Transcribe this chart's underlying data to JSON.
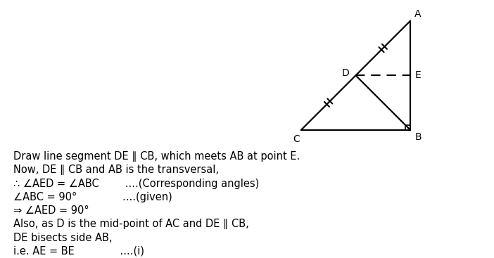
{
  "background_color": "#ffffff",
  "triangle_vertices": {
    "C": [
      0.0,
      0.0
    ],
    "B": [
      1.0,
      0.0
    ],
    "A": [
      1.0,
      1.0
    ]
  },
  "D": [
    0.5,
    0.5
  ],
  "E": [
    1.0,
    0.5
  ],
  "text_lines": [
    "Draw line segment DE ∥ CB, which meets AB at point E.",
    "Now, DE ∥ CB and AB is the transversal,",
    "∴ ∠AED = ∠ABC        ....(Corresponding angles)",
    "∠ABC = 90°              ....(given)",
    "⇒ ∠AED = 90°",
    "Also, as D is the mid-point of AC and DE ∥ CB,",
    "DE bisects side AB,",
    "i.e. AE = BE              ....(i)"
  ],
  "font_size_text": 10.5,
  "line_color": "#000000"
}
